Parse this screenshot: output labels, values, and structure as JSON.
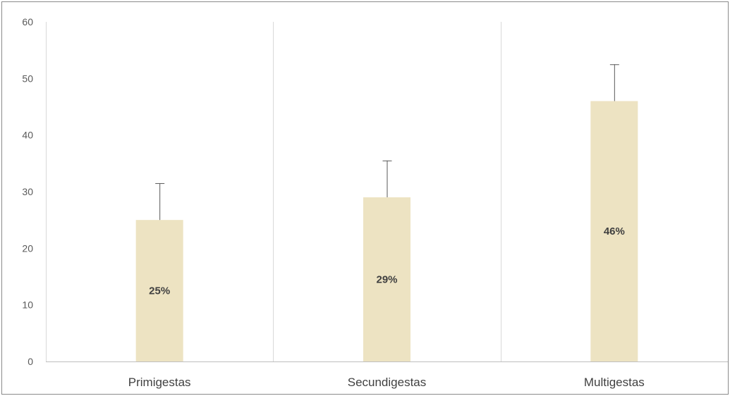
{
  "chart_data": {
    "type": "bar",
    "title": "",
    "xlabel": "",
    "ylabel": "",
    "categories": [
      "Primigestas",
      "Secundigestas",
      "Multigestas"
    ],
    "values": [
      25,
      29,
      46
    ],
    "error_upper": [
      31.5,
      35.5,
      52.5
    ],
    "data_labels": [
      "25%",
      "29%",
      "46%"
    ],
    "ylim": [
      0,
      60
    ],
    "yticks": [
      0,
      10,
      20,
      30,
      40,
      50,
      60
    ],
    "ytick_labels": [
      "0",
      "10",
      "20",
      "30",
      "40",
      "50",
      "60"
    ],
    "grid": "vertical separators between categories",
    "legend": "none",
    "colors": {
      "bar": "#ede3c2",
      "error_bar": "#595959",
      "axis": "#bfbfbf",
      "gridline": "#d9d9d9"
    }
  }
}
